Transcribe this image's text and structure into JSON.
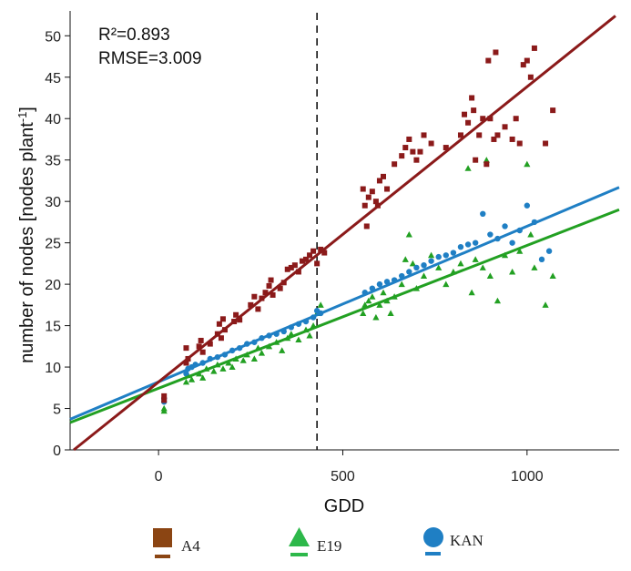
{
  "chart_data": {
    "type": "scatter",
    "xlabel": "GDD",
    "ylabel": "number of nodes [nodes plant",
    "ylabel_sup": "-1",
    "ylabel_close": "]",
    "xlim": [
      -240,
      1250
    ],
    "ylim": [
      0,
      53
    ],
    "xticks": [
      0,
      500,
      1000
    ],
    "xtick_labels": [
      "0",
      "500",
      "1000"
    ],
    "yticks": [
      0,
      5,
      10,
      15,
      20,
      25,
      30,
      35,
      40,
      45,
      50
    ],
    "ytick_labels": [
      "0",
      "5",
      "10",
      "15",
      "20",
      "25",
      "30",
      "35",
      "40",
      "45",
      "50"
    ],
    "annotations": [
      "R²=0.893",
      "RMSE=3.009"
    ],
    "vline_x": 430,
    "grid": false,
    "legend_position": "bottom",
    "series": [
      {
        "name": "A4",
        "marker": "square",
        "color": "#8b1a1a",
        "fit": {
          "x": [
            -230,
            1240
          ],
          "y": [
            0.0,
            52.4
          ]
        },
        "points": [
          [
            15,
            6.5
          ],
          [
            15,
            6.0
          ],
          [
            75,
            10.5
          ],
          [
            75,
            12.3
          ],
          [
            80,
            11.0
          ],
          [
            110,
            12.5
          ],
          [
            115,
            13.2
          ],
          [
            120,
            11.8
          ],
          [
            140,
            12.8
          ],
          [
            160,
            14.0
          ],
          [
            165,
            15.2
          ],
          [
            170,
            13.5
          ],
          [
            175,
            15.8
          ],
          [
            180,
            14.5
          ],
          [
            205,
            15.5
          ],
          [
            210,
            16.3
          ],
          [
            220,
            15.7
          ],
          [
            250,
            17.5
          ],
          [
            260,
            18.5
          ],
          [
            270,
            17.0
          ],
          [
            280,
            18.3
          ],
          [
            290,
            19.0
          ],
          [
            300,
            19.8
          ],
          [
            305,
            20.5
          ],
          [
            310,
            18.7
          ],
          [
            330,
            19.5
          ],
          [
            340,
            20.2
          ],
          [
            350,
            21.8
          ],
          [
            360,
            22.0
          ],
          [
            370,
            22.3
          ],
          [
            380,
            21.5
          ],
          [
            390,
            22.8
          ],
          [
            400,
            23.0
          ],
          [
            410,
            23.5
          ],
          [
            420,
            24.0
          ],
          [
            430,
            22.5
          ],
          [
            440,
            24.2
          ],
          [
            450,
            23.8
          ],
          [
            555,
            31.5
          ],
          [
            560,
            29.5
          ],
          [
            565,
            27.0
          ],
          [
            570,
            30.5
          ],
          [
            580,
            31.2
          ],
          [
            590,
            30.0
          ],
          [
            595,
            29.5
          ],
          [
            600,
            32.5
          ],
          [
            610,
            33.0
          ],
          [
            620,
            31.5
          ],
          [
            640,
            34.5
          ],
          [
            660,
            35.5
          ],
          [
            670,
            36.5
          ],
          [
            680,
            37.5
          ],
          [
            690,
            36.0
          ],
          [
            700,
            35.0
          ],
          [
            710,
            36.0
          ],
          [
            720,
            38.0
          ],
          [
            740,
            37.0
          ],
          [
            780,
            36.5
          ],
          [
            820,
            38.0
          ],
          [
            830,
            40.5
          ],
          [
            840,
            39.5
          ],
          [
            850,
            42.5
          ],
          [
            855,
            41.0
          ],
          [
            860,
            35.0
          ],
          [
            870,
            38.0
          ],
          [
            880,
            40.0
          ],
          [
            890,
            34.5
          ],
          [
            895,
            47.0
          ],
          [
            900,
            40.0
          ],
          [
            910,
            37.5
          ],
          [
            915,
            48.0
          ],
          [
            920,
            38.0
          ],
          [
            940,
            39.0
          ],
          [
            960,
            37.5
          ],
          [
            970,
            40.0
          ],
          [
            980,
            37.0
          ],
          [
            990,
            46.5
          ],
          [
            1000,
            47.0
          ],
          [
            1010,
            45.0
          ],
          [
            1020,
            48.5
          ],
          [
            1050,
            37.0
          ],
          [
            1070,
            41.0
          ]
        ]
      },
      {
        "name": "E19",
        "marker": "triangle",
        "color": "#22a022",
        "fit": {
          "x": [
            -240,
            1250
          ],
          "y": [
            3.3,
            29.0
          ]
        },
        "points": [
          [
            15,
            5.0
          ],
          [
            15,
            4.7
          ],
          [
            75,
            8.2
          ],
          [
            80,
            9.0
          ],
          [
            90,
            8.5
          ],
          [
            110,
            9.2
          ],
          [
            120,
            8.7
          ],
          [
            130,
            9.8
          ],
          [
            150,
            9.5
          ],
          [
            160,
            10.3
          ],
          [
            175,
            9.8
          ],
          [
            190,
            10.5
          ],
          [
            200,
            10.0
          ],
          [
            210,
            11.0
          ],
          [
            230,
            10.8
          ],
          [
            240,
            11.5
          ],
          [
            260,
            11.0
          ],
          [
            270,
            12.3
          ],
          [
            280,
            11.7
          ],
          [
            300,
            12.5
          ],
          [
            320,
            13.0
          ],
          [
            335,
            12.0
          ],
          [
            350,
            13.5
          ],
          [
            360,
            14.0
          ],
          [
            380,
            13.3
          ],
          [
            400,
            14.5
          ],
          [
            410,
            13.8
          ],
          [
            420,
            15.0
          ],
          [
            430,
            16.5
          ],
          [
            440,
            17.5
          ],
          [
            555,
            16.5
          ],
          [
            560,
            17.5
          ],
          [
            570,
            18.0
          ],
          [
            580,
            18.5
          ],
          [
            590,
            16.0
          ],
          [
            600,
            17.5
          ],
          [
            610,
            19.0
          ],
          [
            620,
            18.0
          ],
          [
            630,
            16.5
          ],
          [
            640,
            18.5
          ],
          [
            660,
            20.0
          ],
          [
            670,
            23.0
          ],
          [
            680,
            26.0
          ],
          [
            690,
            22.5
          ],
          [
            700,
            19.5
          ],
          [
            720,
            21.0
          ],
          [
            740,
            23.5
          ],
          [
            760,
            22.0
          ],
          [
            780,
            20.0
          ],
          [
            800,
            21.5
          ],
          [
            820,
            22.5
          ],
          [
            840,
            34.0
          ],
          [
            850,
            19.0
          ],
          [
            860,
            23.0
          ],
          [
            880,
            22.0
          ],
          [
            890,
            35.0
          ],
          [
            900,
            21.0
          ],
          [
            920,
            18.0
          ],
          [
            940,
            23.5
          ],
          [
            960,
            21.5
          ],
          [
            980,
            24.0
          ],
          [
            1000,
            34.5
          ],
          [
            1010,
            26.0
          ],
          [
            1020,
            22.0
          ],
          [
            1050,
            17.5
          ],
          [
            1070,
            21.0
          ]
        ]
      },
      {
        "name": "KAN",
        "marker": "circle",
        "color": "#1f7fc4",
        "fit": {
          "x": [
            -240,
            1250
          ],
          "y": [
            3.7,
            31.7
          ]
        },
        "points": [
          [
            15,
            5.8
          ],
          [
            15,
            6.2
          ],
          [
            75,
            9.2
          ],
          [
            80,
            9.8
          ],
          [
            90,
            10.0
          ],
          [
            100,
            10.3
          ],
          [
            120,
            10.5
          ],
          [
            140,
            11.0
          ],
          [
            160,
            11.2
          ],
          [
            180,
            11.5
          ],
          [
            200,
            12.0
          ],
          [
            220,
            12.3
          ],
          [
            240,
            12.8
          ],
          [
            260,
            13.0
          ],
          [
            280,
            13.5
          ],
          [
            300,
            13.8
          ],
          [
            320,
            14.0
          ],
          [
            340,
            14.3
          ],
          [
            360,
            14.8
          ],
          [
            380,
            15.2
          ],
          [
            400,
            15.5
          ],
          [
            420,
            16.0
          ],
          [
            430,
            16.8
          ],
          [
            440,
            16.5
          ],
          [
            560,
            19.0
          ],
          [
            580,
            19.5
          ],
          [
            600,
            20.0
          ],
          [
            620,
            20.3
          ],
          [
            640,
            20.5
          ],
          [
            660,
            21.0
          ],
          [
            680,
            21.5
          ],
          [
            700,
            22.0
          ],
          [
            720,
            22.3
          ],
          [
            740,
            22.8
          ],
          [
            760,
            23.3
          ],
          [
            780,
            23.5
          ],
          [
            800,
            23.8
          ],
          [
            820,
            24.5
          ],
          [
            840,
            24.8
          ],
          [
            860,
            25.0
          ],
          [
            880,
            28.5
          ],
          [
            900,
            26.0
          ],
          [
            920,
            25.5
          ],
          [
            940,
            27.0
          ],
          [
            960,
            25.0
          ],
          [
            980,
            26.5
          ],
          [
            1000,
            29.5
          ],
          [
            1020,
            27.5
          ],
          [
            1040,
            23.0
          ],
          [
            1060,
            24.0
          ]
        ]
      }
    ]
  }
}
